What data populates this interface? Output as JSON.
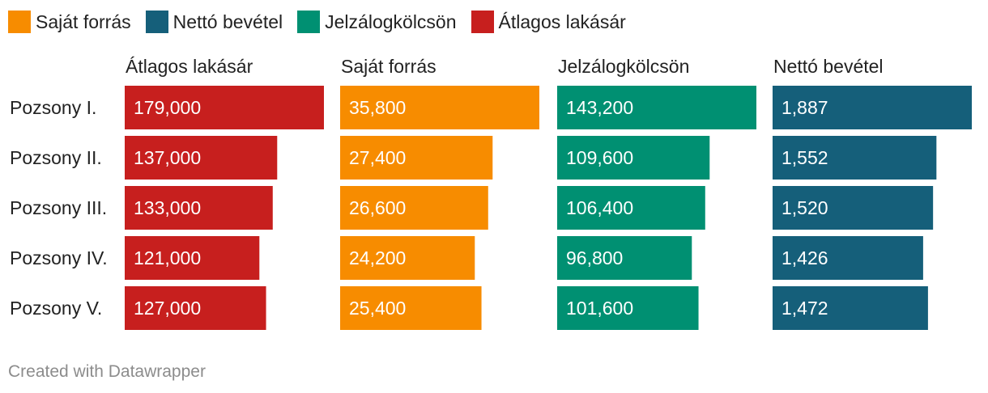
{
  "legend": [
    {
      "label": "Saját forrás",
      "color": "#f78c00"
    },
    {
      "label": "Nettó bevétel",
      "color": "#155f7a"
    },
    {
      "label": "Jelzálogkölcsön",
      "color": "#009072"
    },
    {
      "label": "Átlagos lakásár",
      "color": "#c71f1e"
    }
  ],
  "chart_data": {
    "type": "bar",
    "orientation": "horizontal",
    "layout": "small-multiples",
    "categories": [
      "Pozsony I.",
      "Pozsony II.",
      "Pozsony III.",
      "Pozsony IV.",
      "Pozsony V."
    ],
    "series": [
      {
        "name": "Átlagos lakásár",
        "color": "#c71f1e",
        "values": [
          179000,
          137000,
          133000,
          121000,
          127000
        ],
        "labels": [
          "179,000",
          "137,000",
          "133,000",
          "121,000",
          "127,000"
        ]
      },
      {
        "name": "Saját forrás",
        "color": "#f78c00",
        "values": [
          35800,
          27400,
          26600,
          24200,
          25400
        ],
        "labels": [
          "35,800",
          "27,400",
          "26,600",
          "24,200",
          "25,400"
        ]
      },
      {
        "name": "Jelzálogkölcsön",
        "color": "#009072",
        "values": [
          143200,
          109600,
          106400,
          96800,
          101600
        ],
        "labels": [
          "143,200",
          "109,600",
          "106,400",
          "96,800",
          "101,600"
        ]
      },
      {
        "name": "Nettó bevétel",
        "color": "#155f7a",
        "values": [
          1887,
          1552,
          1520,
          1426,
          1472
        ],
        "labels": [
          "1,887",
          "1,552",
          "1,520",
          "1,426",
          "1,472"
        ]
      }
    ]
  },
  "footer": "Created with Datawrapper"
}
